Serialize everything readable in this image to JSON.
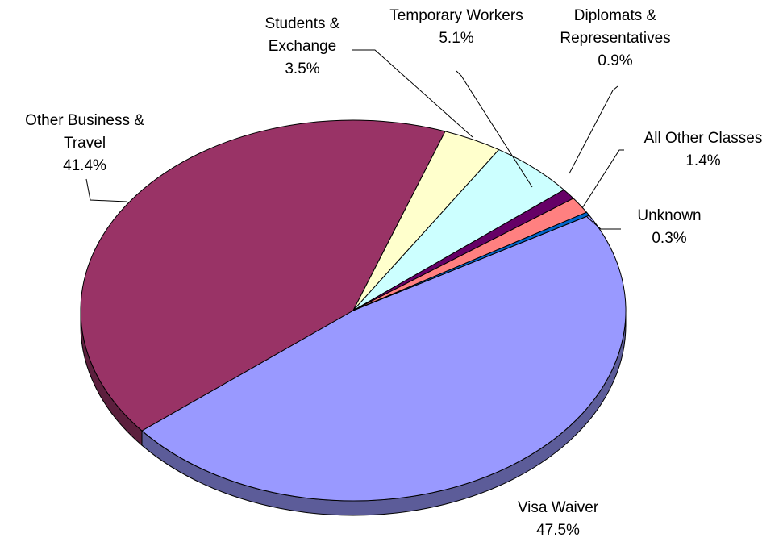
{
  "chart_data": {
    "type": "pie",
    "three_d": true,
    "categories": [
      "Visa Waiver",
      "Other Business & Travel",
      "Students & Exchange",
      "Temporary Workers",
      "Diplomats & Representatives",
      "All Other Classes",
      "Unknown"
    ],
    "values": [
      47.5,
      41.4,
      3.5,
      5.1,
      0.9,
      1.4,
      0.3
    ],
    "value_labels": [
      "47.5%",
      "41.4%",
      "3.5%",
      "5.1%",
      "0.9%",
      "1.4%",
      "0.3%"
    ],
    "colors": [
      "#9999ff",
      "#993366",
      "#ffffcc",
      "#ccffff",
      "#660066",
      "#ff8080",
      "#0066cc"
    ]
  }
}
